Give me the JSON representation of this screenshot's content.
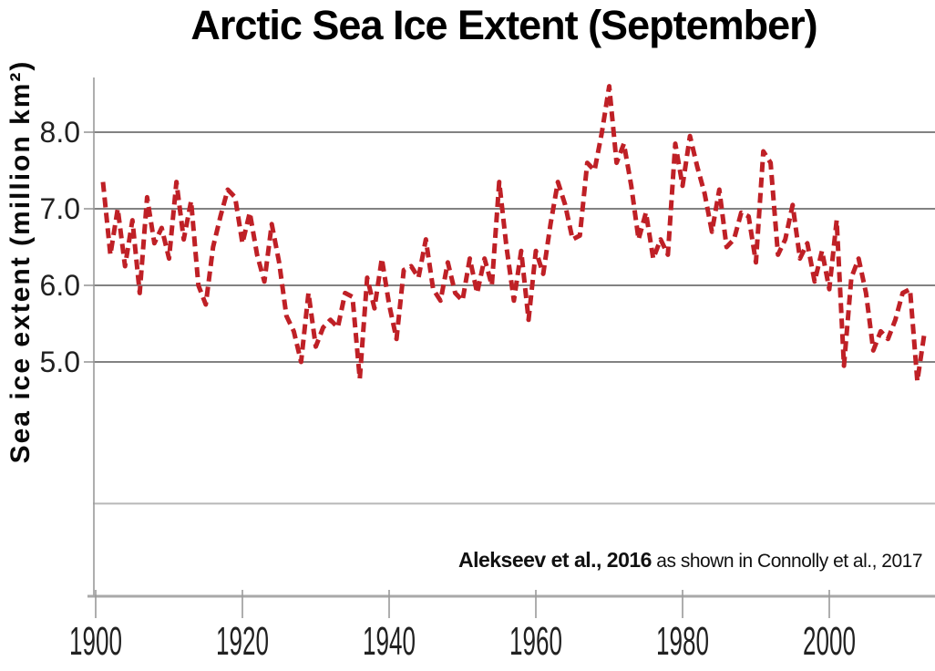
{
  "page": {
    "title": "Arctic Sea Ice Extent (September)",
    "attribution_bold": "Alekseev et al., 2016",
    "attribution_regular": " as shown in Connolly et al., 2017"
  },
  "colors": {
    "line": "#bf2026",
    "grid": "#828282",
    "grid_faint": "#b8b8b8",
    "axis": "#a8a8a8",
    "tick": "#9a9a9a",
    "tick_text": "#212121",
    "title_text": "#000000"
  },
  "chart_data": {
    "type": "line",
    "title": "Arctic Sea Ice Extent (September)",
    "ylabel": "Sea ice extent (million km²)",
    "xlabel": "",
    "grid": "horizontal",
    "legend": "none",
    "line_style": "dashed",
    "xlim": [
      1900,
      2014.5
    ],
    "x_ticks": [
      1900,
      1920,
      1940,
      1960,
      1980,
      2000
    ],
    "y_ticks": [
      {
        "label": "8.0",
        "value": 8.0
      },
      {
        "label": "7.0",
        "value": 7.0
      },
      {
        "label": "6.0",
        "value": 6.0
      },
      {
        "label": "5.0",
        "value": 5.0
      }
    ],
    "unlabeled_gridline_value": 3.15,
    "series": [
      {
        "name": "September Arctic sea ice extent (million km2)",
        "color": "#bf2026",
        "style": "dashed",
        "x": [
          1901,
          1902,
          1903,
          1904,
          1905,
          1906,
          1907,
          1908,
          1909,
          1910,
          1911,
          1912,
          1913,
          1914,
          1915,
          1916,
          1917,
          1918,
          1919,
          1920,
          1921,
          1922,
          1923,
          1924,
          1925,
          1926,
          1927,
          1928,
          1929,
          1930,
          1931,
          1932,
          1933,
          1934,
          1935,
          1936,
          1937,
          1938,
          1939,
          1940,
          1941,
          1942,
          1943,
          1944,
          1945,
          1946,
          1947,
          1948,
          1949,
          1950,
          1951,
          1952,
          1953,
          1954,
          1955,
          1956,
          1957,
          1958,
          1959,
          1960,
          1961,
          1962,
          1963,
          1964,
          1965,
          1966,
          1967,
          1968,
          1969,
          1970,
          1971,
          1972,
          1973,
          1974,
          1975,
          1976,
          1977,
          1978,
          1979,
          1980,
          1981,
          1982,
          1983,
          1984,
          1985,
          1986,
          1987,
          1988,
          1989,
          1990,
          1991,
          1992,
          1993,
          1994,
          1995,
          1996,
          1997,
          1998,
          1999,
          2000,
          2001,
          2002,
          2003,
          2004,
          2005,
          2006,
          2007,
          2008,
          2009,
          2010,
          2011,
          2012,
          2013
        ],
        "values": [
          7.35,
          6.4,
          7.0,
          6.25,
          6.85,
          5.9,
          7.15,
          6.55,
          6.75,
          6.35,
          7.35,
          6.6,
          7.1,
          6.0,
          5.75,
          6.5,
          6.9,
          7.25,
          7.15,
          6.55,
          6.95,
          6.4,
          6.05,
          6.8,
          6.3,
          5.6,
          5.4,
          5.0,
          5.9,
          5.2,
          5.45,
          5.55,
          5.45,
          5.9,
          5.85,
          4.78,
          6.1,
          5.7,
          6.35,
          5.75,
          5.3,
          6.2,
          6.25,
          6.1,
          6.6,
          5.95,
          5.8,
          6.3,
          5.9,
          5.8,
          6.35,
          5.9,
          6.35,
          6.0,
          7.35,
          6.5,
          5.8,
          6.45,
          5.55,
          6.45,
          6.15,
          6.8,
          7.35,
          7.05,
          6.6,
          6.65,
          7.6,
          7.5,
          8.0,
          8.6,
          7.6,
          7.85,
          7.3,
          6.6,
          6.95,
          6.35,
          6.6,
          6.4,
          7.85,
          7.3,
          7.95,
          7.55,
          7.2,
          6.7,
          7.25,
          6.5,
          6.6,
          6.95,
          6.9,
          6.3,
          7.75,
          7.6,
          6.4,
          6.6,
          7.05,
          6.35,
          6.55,
          6.05,
          6.45,
          5.95,
          6.85,
          4.95,
          6.1,
          6.35,
          5.9,
          5.15,
          5.4,
          5.3,
          5.55,
          5.9,
          5.95,
          4.75,
          5.4
        ]
      }
    ]
  }
}
